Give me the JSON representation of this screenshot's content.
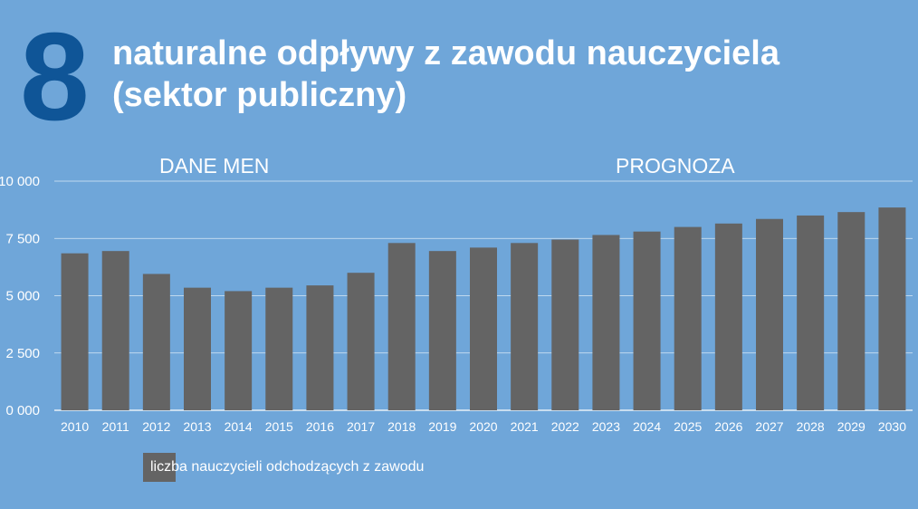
{
  "header": {
    "number": "8",
    "title_line1": "naturalne odpływy z zawodu nauczyciela",
    "title_line2": "(sektor publiczny)"
  },
  "sections": {
    "historical_label": "DANE MEN",
    "forecast_label": "PROGNOZA"
  },
  "legend": {
    "label": "liczba nauczycieli odchodzących z zawodu"
  },
  "colors": {
    "background": "#6fa6d9",
    "bar": "#646464",
    "number": "#0f5597",
    "text": "#ffffff"
  },
  "chart_data": {
    "type": "bar",
    "categories": [
      "2010",
      "2011",
      "2012",
      "2013",
      "2014",
      "2015",
      "2016",
      "2017",
      "2018",
      "2019",
      "2020",
      "2021",
      "2022",
      "2023",
      "2024",
      "2025",
      "2026",
      "2027",
      "2028",
      "2029",
      "2030"
    ],
    "series": [
      {
        "name": "liczba nauczycieli odchodzących z zawodu",
        "values": [
          6850,
          6950,
          5950,
          5350,
          5200,
          5350,
          5450,
          6000,
          7300,
          6950,
          7100,
          7300,
          7450,
          7650,
          7800,
          8000,
          8150,
          8350,
          8500,
          8650,
          8850
        ]
      }
    ],
    "yticks": [
      "0 000",
      "2 500",
      "5 000",
      "7 500",
      "10 000"
    ],
    "ylim": [
      0,
      10000
    ],
    "grid": true,
    "legend_position": "bottom-left"
  }
}
